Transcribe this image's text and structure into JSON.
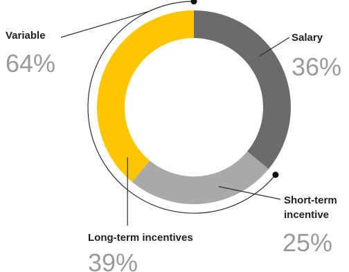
{
  "chart_data": {
    "type": "pie",
    "variant": "donut",
    "categories": [
      "Salary",
      "Short-term incentive",
      "Long-term incentives"
    ],
    "values": [
      36,
      25,
      39
    ],
    "value_labels": [
      "36%",
      "25%",
      "39%"
    ],
    "colors": [
      "#6b6b6e",
      "#a9a9ab",
      "#ffc600"
    ],
    "group": {
      "label": "Variable",
      "value_label": "64%",
      "members": [
        "Short-term incentive",
        "Long-term incentives"
      ]
    },
    "labels": {
      "salary": "Salary",
      "short_term_line1": "Short-term",
      "short_term_line2": "incentive",
      "long_term": "Long-term incentives"
    },
    "legend": "none",
    "start_angle_deg": 0,
    "direction": "clockwise"
  }
}
